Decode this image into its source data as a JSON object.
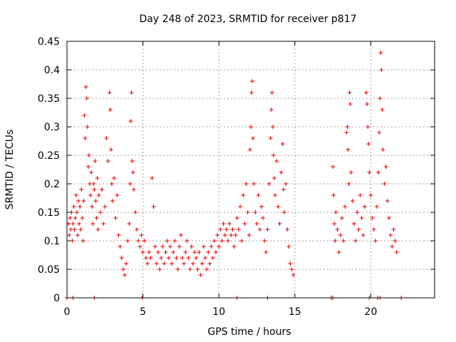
{
  "chart_data": {
    "type": "scatter",
    "title": "Day 248 of 2023, SRMTID for receiver p817",
    "xlabel": "GPS time / hours",
    "ylabel": "SRMTID / TECUs",
    "xlim": [
      0,
      24.2
    ],
    "ylim": [
      0,
      0.45
    ],
    "xticks": [
      0,
      5,
      10,
      15,
      20
    ],
    "xtick_labels": [
      "0",
      "5",
      "10",
      "15",
      "20"
    ],
    "yticks": [
      0,
      0.05,
      0.1,
      0.15,
      0.2,
      0.25,
      0.3,
      0.35,
      0.4,
      0.45
    ],
    "ytick_labels": [
      "0",
      "0.05",
      "0.1",
      "0.15",
      "0.2",
      "0.25",
      "0.3",
      "0.35",
      "0.4",
      "0.45"
    ],
    "grid": true,
    "marker": "plus",
    "color": "#e00000",
    "series": [
      {
        "name": "SRMTID",
        "points": [
          [
            0.1,
            0.13
          ],
          [
            0.15,
            0.11
          ],
          [
            0.2,
            0.14
          ],
          [
            0.25,
            0.12
          ],
          [
            0.3,
            0.15
          ],
          [
            0.35,
            0.1
          ],
          [
            0.4,
            0.13
          ],
          [
            0.45,
            0.16
          ],
          [
            0.5,
            0.12
          ],
          [
            0.55,
            0.14
          ],
          [
            0.6,
            0.18
          ],
          [
            0.65,
            0.15
          ],
          [
            0.7,
            0.11
          ],
          [
            0.75,
            0.17
          ],
          [
            0.8,
            0.13
          ],
          [
            0.85,
            0.16
          ],
          [
            0.9,
            0.12
          ],
          [
            0.95,
            0.19
          ],
          [
            1.0,
            0.14
          ],
          [
            1.05,
            0.1
          ],
          [
            1.1,
            0.17
          ],
          [
            1.15,
            0.32
          ],
          [
            1.2,
            0.28
          ],
          [
            1.25,
            0.37
          ],
          [
            1.3,
            0.35
          ],
          [
            1.35,
            0.3
          ],
          [
            1.4,
            0.23
          ],
          [
            1.45,
            0.25
          ],
          [
            1.5,
            0.2
          ],
          [
            1.55,
            0.18
          ],
          [
            1.6,
            0.22
          ],
          [
            1.65,
            0.16
          ],
          [
            1.7,
            0.13
          ],
          [
            1.75,
            0.2
          ],
          [
            1.8,
            0.19
          ],
          [
            1.85,
            0.24
          ],
          [
            1.9,
            0.17
          ],
          [
            1.95,
            0.14
          ],
          [
            2.0,
            0.21
          ],
          [
            2.05,
            0.12
          ],
          [
            2.1,
            0.18
          ],
          [
            2.2,
            0.15
          ],
          [
            2.3,
            0.19
          ],
          [
            2.4,
            0.13
          ],
          [
            2.5,
            0.16
          ],
          [
            2.6,
            0.28
          ],
          [
            2.7,
            0.24
          ],
          [
            2.8,
            0.36
          ],
          [
            2.85,
            0.33
          ],
          [
            2.9,
            0.26
          ],
          [
            2.95,
            0.2
          ],
          [
            3.0,
            0.17
          ],
          [
            3.1,
            0.21
          ],
          [
            3.2,
            0.14
          ],
          [
            3.3,
            0.18
          ],
          [
            3.4,
            0.11
          ],
          [
            3.5,
            0.09
          ],
          [
            3.6,
            0.07
          ],
          [
            3.7,
            0.05
          ],
          [
            3.8,
            0.04
          ],
          [
            3.9,
            0.06
          ],
          [
            4.0,
            0.1
          ],
          [
            4.1,
            0.13
          ],
          [
            4.15,
            0.2
          ],
          [
            4.2,
            0.31
          ],
          [
            4.25,
            0.36
          ],
          [
            4.3,
            0.24
          ],
          [
            4.35,
            0.22
          ],
          [
            4.4,
            0.19
          ],
          [
            4.5,
            0.15
          ],
          [
            4.6,
            0.12
          ],
          [
            4.7,
            0.1
          ],
          [
            4.8,
            0.09
          ],
          [
            4.9,
            0.11
          ],
          [
            5.0,
            0.08
          ],
          [
            5.1,
            0.1
          ],
          [
            5.2,
            0.07
          ],
          [
            5.3,
            0.06
          ],
          [
            5.4,
            0.08
          ],
          [
            5.5,
            0.07
          ],
          [
            5.6,
            0.21
          ],
          [
            5.7,
            0.16
          ],
          [
            5.8,
            0.09
          ],
          [
            5.9,
            0.06
          ],
          [
            6.0,
            0.08
          ],
          [
            6.1,
            0.05
          ],
          [
            6.2,
            0.07
          ],
          [
            6.3,
            0.09
          ],
          [
            6.4,
            0.06
          ],
          [
            6.5,
            0.08
          ],
          [
            6.6,
            0.1
          ],
          [
            6.7,
            0.07
          ],
          [
            6.8,
            0.09
          ],
          [
            6.9,
            0.06
          ],
          [
            7.0,
            0.08
          ],
          [
            7.1,
            0.1
          ],
          [
            7.2,
            0.07
          ],
          [
            7.3,
            0.05
          ],
          [
            7.4,
            0.09
          ],
          [
            7.5,
            0.11
          ],
          [
            7.6,
            0.07
          ],
          [
            7.7,
            0.06
          ],
          [
            7.8,
            0.08
          ],
          [
            7.9,
            0.1
          ],
          [
            8.0,
            0.07
          ],
          [
            8.1,
            0.05
          ],
          [
            8.2,
            0.09
          ],
          [
            8.3,
            0.06
          ],
          [
            8.4,
            0.08
          ],
          [
            8.5,
            0.07
          ],
          [
            8.6,
            0.05
          ],
          [
            8.7,
            0.08
          ],
          [
            8.8,
            0.04
          ],
          [
            8.9,
            0.06
          ],
          [
            9.0,
            0.09
          ],
          [
            9.1,
            0.07
          ],
          [
            9.2,
            0.05
          ],
          [
            9.3,
            0.08
          ],
          [
            9.4,
            0.06
          ],
          [
            9.5,
            0.09
          ],
          [
            9.6,
            0.07
          ],
          [
            9.7,
            0.1
          ],
          [
            9.8,
            0.08
          ],
          [
            9.9,
            0.11
          ],
          [
            10.0,
            0.09
          ],
          [
            10.1,
            0.12
          ],
          [
            10.2,
            0.1
          ],
          [
            10.3,
            0.13
          ],
          [
            10.4,
            0.11
          ],
          [
            10.5,
            0.12
          ],
          [
            10.6,
            0.1
          ],
          [
            10.7,
            0.13
          ],
          [
            10.8,
            0.11
          ],
          [
            10.9,
            0.12
          ],
          [
            11.0,
            0.09
          ],
          [
            11.1,
            0.11
          ],
          [
            11.2,
            0.14
          ],
          [
            11.3,
            0.12
          ],
          [
            11.4,
            0.16
          ],
          [
            11.5,
            0.1
          ],
          [
            11.6,
            0.18
          ],
          [
            11.7,
            0.13
          ],
          [
            11.8,
            0.2
          ],
          [
            11.9,
            0.15
          ],
          [
            12.0,
            0.11
          ],
          [
            12.05,
            0.26
          ],
          [
            12.1,
            0.3
          ],
          [
            12.15,
            0.36
          ],
          [
            12.2,
            0.38
          ],
          [
            12.25,
            0.28
          ],
          [
            12.3,
            0.2
          ],
          [
            12.4,
            0.15
          ],
          [
            12.5,
            0.13
          ],
          [
            12.6,
            0.18
          ],
          [
            12.7,
            0.12
          ],
          [
            12.8,
            0.16
          ],
          [
            12.9,
            0.14
          ],
          [
            13.0,
            0.1
          ],
          [
            13.1,
            0.08
          ],
          [
            13.2,
            0.12
          ],
          [
            13.3,
            0.2
          ],
          [
            13.4,
            0.28
          ],
          [
            13.45,
            0.33
          ],
          [
            13.5,
            0.36
          ],
          [
            13.55,
            0.3
          ],
          [
            13.6,
            0.25
          ],
          [
            13.65,
            0.21
          ],
          [
            13.7,
            0.18
          ],
          [
            13.8,
            0.24
          ],
          [
            13.9,
            0.16
          ],
          [
            14.0,
            0.13
          ],
          [
            14.1,
            0.22
          ],
          [
            14.2,
            0.27
          ],
          [
            14.25,
            0.19
          ],
          [
            14.3,
            0.15
          ],
          [
            14.4,
            0.2
          ],
          [
            14.5,
            0.12
          ],
          [
            14.6,
            0.09
          ],
          [
            14.7,
            0.06
          ],
          [
            14.8,
            0.05
          ],
          [
            14.9,
            0.04
          ],
          [
            17.5,
            0.23
          ],
          [
            17.55,
            0.18
          ],
          [
            17.6,
            0.13
          ],
          [
            17.65,
            0.1
          ],
          [
            17.7,
            0.15
          ],
          [
            17.8,
            0.12
          ],
          [
            17.9,
            0.08
          ],
          [
            18.0,
            0.11
          ],
          [
            18.1,
            0.14
          ],
          [
            18.2,
            0.1
          ],
          [
            18.3,
            0.16
          ],
          [
            18.4,
            0.29
          ],
          [
            18.45,
            0.3
          ],
          [
            18.5,
            0.26
          ],
          [
            18.55,
            0.2
          ],
          [
            18.6,
            0.36
          ],
          [
            18.65,
            0.34
          ],
          [
            18.7,
            0.22
          ],
          [
            18.8,
            0.17
          ],
          [
            18.9,
            0.13
          ],
          [
            19.0,
            0.1
          ],
          [
            19.1,
            0.15
          ],
          [
            19.2,
            0.12
          ],
          [
            19.3,
            0.18
          ],
          [
            19.4,
            0.14
          ],
          [
            19.5,
            0.11
          ],
          [
            19.6,
            0.16
          ],
          [
            19.7,
            0.36
          ],
          [
            19.75,
            0.34
          ],
          [
            19.8,
            0.3
          ],
          [
            19.85,
            0.27
          ],
          [
            19.9,
            0.22
          ],
          [
            20.0,
            0.18
          ],
          [
            20.1,
            0.14
          ],
          [
            20.2,
            0.12
          ],
          [
            20.3,
            0.1
          ],
          [
            20.4,
            0.16
          ],
          [
            20.5,
            0.22
          ],
          [
            20.55,
            0.29
          ],
          [
            20.6,
            0.35
          ],
          [
            20.65,
            0.43
          ],
          [
            20.7,
            0.4
          ],
          [
            20.75,
            0.33
          ],
          [
            20.8,
            0.26
          ],
          [
            20.9,
            0.2
          ],
          [
            21.0,
            0.23
          ],
          [
            21.1,
            0.17
          ],
          [
            21.2,
            0.14
          ],
          [
            21.3,
            0.11
          ],
          [
            21.4,
            0.09
          ],
          [
            21.5,
            0.12
          ],
          [
            21.6,
            0.1
          ],
          [
            21.7,
            0.08
          ],
          [
            0,
            0
          ],
          [
            0.4,
            0
          ],
          [
            1.8,
            0
          ],
          [
            4.95,
            0
          ],
          [
            11.2,
            0
          ],
          [
            13.2,
            0
          ],
          [
            17.4,
            0
          ],
          [
            17.5,
            0
          ],
          [
            19.9,
            0
          ],
          [
            20.45,
            0
          ],
          [
            20.6,
            0
          ],
          [
            22.0,
            0
          ]
        ]
      }
    ]
  }
}
